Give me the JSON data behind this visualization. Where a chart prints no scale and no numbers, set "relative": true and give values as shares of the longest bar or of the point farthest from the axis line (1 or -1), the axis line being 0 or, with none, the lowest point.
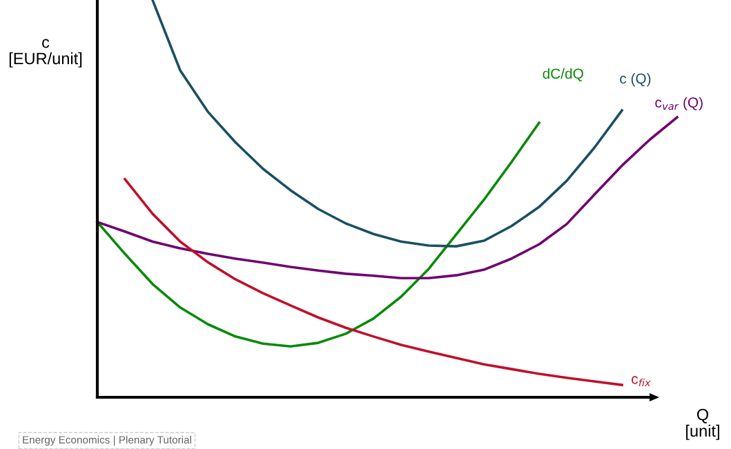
{
  "chart_data": {
    "type": "line",
    "relative": true,
    "xlabel": "Q\n[unit]",
    "ylabel": "c\n[EUR/unit]",
    "legend": false,
    "marker": "none",
    "line_style": "solid",
    "categories": [
      null,
      null,
      null,
      null,
      null,
      null,
      null,
      null,
      null,
      null,
      null,
      null,
      null,
      null,
      null,
      null,
      null,
      null,
      null,
      null,
      null,
      null
    ],
    "series": [
      {
        "name": "dC/dQ",
        "color": "#0a8a0a",
        "values": [
          0.441,
          0.361,
          0.285,
          0.226,
          0.184,
          0.153,
          0.135,
          0.128,
          0.137,
          0.16,
          0.198,
          0.253,
          0.323,
          0.41,
          0.497,
          0.592,
          0.691,
          null,
          null,
          null,
          null,
          null
        ]
      },
      {
        "name": "c (Q)",
        "color": "#1a4f63",
        "values": [
          null,
          null,
          1.0,
          0.823,
          0.719,
          0.642,
          0.575,
          0.521,
          0.474,
          0.4375,
          0.411,
          0.392,
          0.382,
          0.38,
          0.394,
          0.431,
          0.479,
          0.545,
          0.628,
          0.722,
          null,
          null
        ]
      },
      {
        "name": "c$_{var}$ (Q)",
        "color": "#700070",
        "values": [
          0.441,
          0.417,
          0.392,
          0.375,
          0.361,
          0.349,
          0.339,
          0.328,
          0.319,
          0.311,
          0.306,
          0.3,
          0.3,
          0.307,
          0.321,
          0.349,
          0.385,
          0.436,
          0.51,
          0.583,
          0.648,
          0.705
        ]
      },
      {
        "name": "c$_{fix}$",
        "color": "#c0102a",
        "values": [
          null,
          0.549,
          0.462,
          0.392,
          0.34,
          0.297,
          0.262,
          0.231,
          0.201,
          0.175,
          0.153,
          0.132,
          0.115,
          0.099,
          0.083,
          0.071,
          0.059,
          0.049,
          0.04,
          0.031,
          null,
          null
        ]
      }
    ],
    "annotations": [
      "Energy Economics | Plenary Tutorial"
    ]
  }
}
